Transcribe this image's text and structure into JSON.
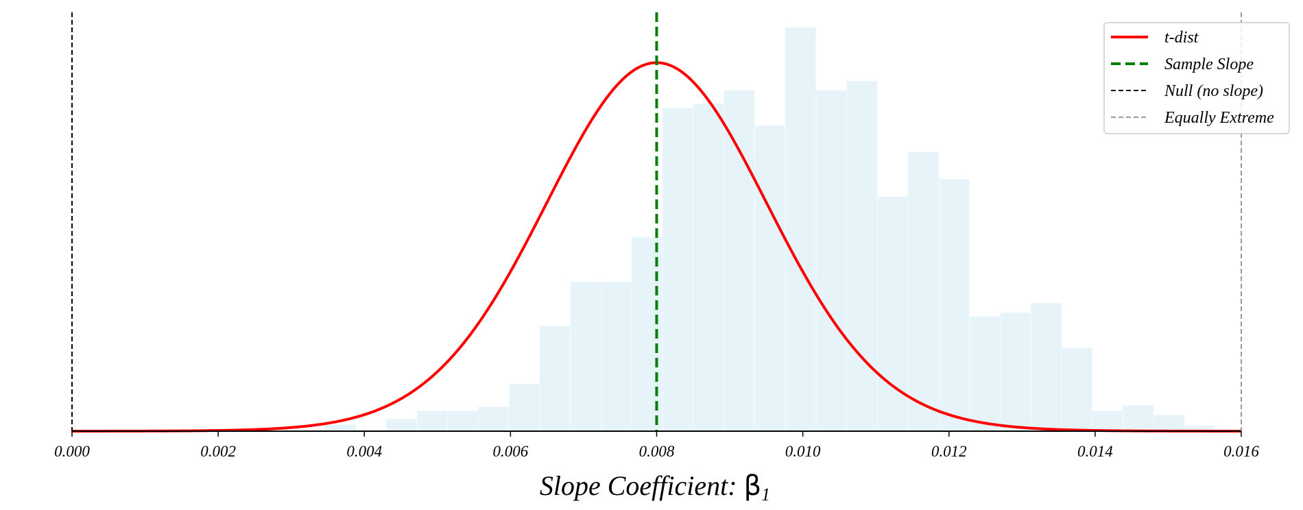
{
  "chart_data": {
    "type": "histogram+line",
    "xlabel": "Slope Coefficient: ",
    "xlabel_symbol": "β",
    "xlabel_subscript": "1",
    "xlim": [
      0.0,
      0.016
    ],
    "ylim": [
      0,
      1.09
    ],
    "x_ticks": [
      "0.000",
      "0.002",
      "0.004",
      "0.006",
      "0.008",
      "0.010",
      "0.012",
      "0.014",
      "0.016"
    ],
    "x_tick_values": [
      0.0,
      0.002,
      0.004,
      0.006,
      0.008,
      0.01,
      0.012,
      0.014,
      0.016
    ],
    "y_axis_visible": false,
    "histogram": {
      "color": "#e6f4fa",
      "bin_width": 0.00042,
      "bins": [
        {
          "x0": 0.00346,
          "height": 0.018
        },
        {
          "x0": 0.00388,
          "height": 0.0
        },
        {
          "x0": 0.0043,
          "height": 0.033
        },
        {
          "x0": 0.00472,
          "height": 0.055
        },
        {
          "x0": 0.00514,
          "height": 0.055
        },
        {
          "x0": 0.00556,
          "height": 0.066
        },
        {
          "x0": 0.00598,
          "height": 0.128
        },
        {
          "x0": 0.0064,
          "height": 0.285
        },
        {
          "x0": 0.00682,
          "height": 0.405
        },
        {
          "x0": 0.00724,
          "height": 0.405
        },
        {
          "x0": 0.00766,
          "height": 0.527
        },
        {
          "x0": 0.00808,
          "height": 0.877
        },
        {
          "x0": 0.0085,
          "height": 0.888
        },
        {
          "x0": 0.00892,
          "height": 0.925
        },
        {
          "x0": 0.00934,
          "height": 0.829
        },
        {
          "x0": 0.00976,
          "height": 1.096
        },
        {
          "x0": 0.01018,
          "height": 0.925
        },
        {
          "x0": 0.0106,
          "height": 0.95
        },
        {
          "x0": 0.01102,
          "height": 0.636
        },
        {
          "x0": 0.01144,
          "height": 0.758
        },
        {
          "x0": 0.01186,
          "height": 0.684
        },
        {
          "x0": 0.01228,
          "height": 0.311
        },
        {
          "x0": 0.0127,
          "height": 0.322
        },
        {
          "x0": 0.01312,
          "height": 0.348
        },
        {
          "x0": 0.01354,
          "height": 0.226
        },
        {
          "x0": 0.01396,
          "height": 0.055
        },
        {
          "x0": 0.01438,
          "height": 0.07
        },
        {
          "x0": 0.0148,
          "height": 0.044
        },
        {
          "x0": 0.01522,
          "height": 0.015
        }
      ]
    },
    "t_dist": {
      "name": "t-dist",
      "color": "#ff0000",
      "center": 0.008,
      "scale": 0.00155,
      "df": 30,
      "peak": 1.0
    },
    "vlines": [
      {
        "name": "Sample Slope",
        "x": 0.008,
        "color": "#007f00",
        "style": "dashed-thick"
      },
      {
        "name": "Null (no slope)",
        "x": 0.0,
        "color": "#000000",
        "style": "dashed"
      },
      {
        "name": "Equally Extreme",
        "x": 0.016,
        "color": "#999999",
        "style": "dashed"
      }
    ],
    "legend": {
      "placement": "top-right",
      "entries": [
        {
          "label": "t-dist",
          "color": "#ff0000",
          "style": "solid"
        },
        {
          "label": "Sample Slope",
          "color": "#007f00",
          "style": "dashed-thick"
        },
        {
          "label": "Null (no slope)",
          "color": "#000000",
          "style": "dashed"
        },
        {
          "label": "Equally Extreme",
          "color": "#999999",
          "style": "dashed"
        }
      ]
    }
  }
}
